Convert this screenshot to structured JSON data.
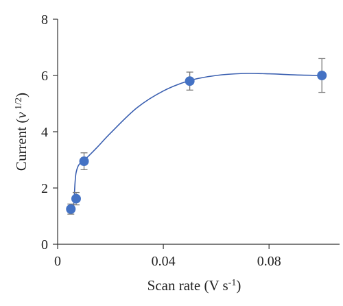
{
  "chart_data": {
    "type": "scatter",
    "title": "",
    "xlabel": "Scan rate (V s",
    "xlabel_sup": "-1",
    "xlabel_end": ")",
    "ylabel": "Current (",
    "ylabel_nu": "ν",
    "ylabel_sup": " 1/2",
    "ylabel_end": ")",
    "xlim": [
      0,
      0.105
    ],
    "ylim": [
      0,
      8
    ],
    "xticks": [
      0,
      0.04,
      0.08
    ],
    "xtick_labels": [
      "0",
      "0.04",
      "0.08"
    ],
    "yticks": [
      0,
      2,
      4,
      6,
      8
    ],
    "ytick_labels": [
      "0",
      "2",
      "4",
      "6",
      "8"
    ],
    "grid": false,
    "legend": "none",
    "series": [
      {
        "x": [
          0.005,
          0.007,
          0.01,
          0.05,
          0.1
        ],
        "y": [
          1.25,
          1.62,
          2.95,
          5.8,
          6.0
        ],
        "err": [
          0.18,
          0.22,
          0.3,
          0.32,
          0.6
        ],
        "color": "#4472c4"
      }
    ],
    "fit_line": {
      "color": "#3a5fb0",
      "x": [
        0.006,
        0.0063,
        0.0066,
        0.007,
        0.008,
        0.01,
        0.015,
        0.02,
        0.03,
        0.04,
        0.05,
        0.06,
        0.07,
        0.08,
        0.09,
        0.1
      ],
      "y": [
        1.25,
        1.7,
        2.2,
        2.55,
        2.82,
        2.98,
        3.45,
        3.95,
        4.85,
        5.45,
        5.82,
        6.0,
        6.07,
        6.06,
        6.02,
        6.0
      ]
    }
  }
}
